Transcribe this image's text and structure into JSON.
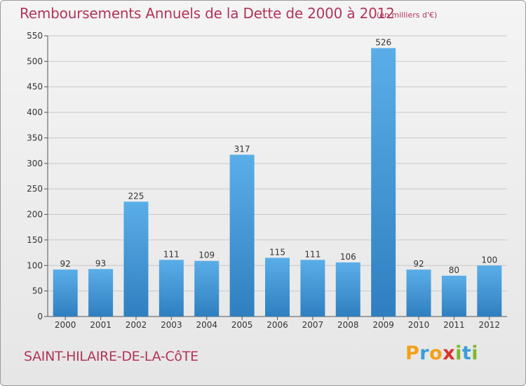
{
  "header": {
    "title": "Remboursements Annuels de la Dette de 2000 à 2012",
    "unit": "(en milliers d'€)"
  },
  "footer": {
    "commune": "SAINT-HILAIRE-DE-LA-CôTE",
    "logo": "Proxiti",
    "logo_letters": [
      "P",
      "r",
      "o",
      "x",
      "i",
      "t",
      "i"
    ],
    "logo_colors": [
      "#f2a11a",
      "#3a9fd8",
      "#f2a11a",
      "#d8332a",
      "#7cb928",
      "#3a9fd8",
      "#7cb928"
    ]
  },
  "colors": {
    "title": "#b2345a",
    "bar_top": "#5aaee8",
    "bar_bottom": "#2f7fc0"
  },
  "chart_data": {
    "type": "bar",
    "title": "Remboursements Annuels de la Dette de 2000 à 2012",
    "categories": [
      "2000",
      "2001",
      "2002",
      "2003",
      "2004",
      "2005",
      "2006",
      "2007",
      "2008",
      "2009",
      "2010",
      "2011",
      "2012"
    ],
    "values": [
      92,
      93,
      225,
      111,
      109,
      317,
      115,
      111,
      106,
      526,
      92,
      80,
      100
    ],
    "ylim": [
      0,
      550
    ],
    "yticks": [
      0,
      50,
      100,
      150,
      200,
      250,
      300,
      350,
      400,
      450,
      500,
      550
    ],
    "grid": true,
    "xlabel": "",
    "ylabel": ""
  }
}
